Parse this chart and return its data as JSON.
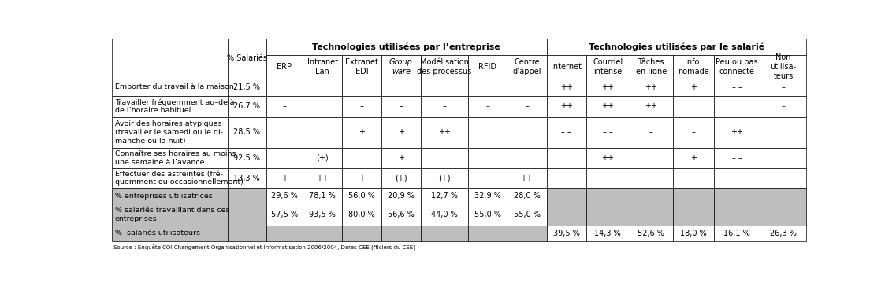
{
  "source": "Source : Enquête COI-Changement Organisationnel et Informatisation 2006/2004, Dares-CEE (fficiers du CEE)",
  "group_header_enterprise": "Technologies utilisées par l’entreprise",
  "group_header_salaried": "Technologies utilisées par le salarié",
  "pct_col_label": "% Salariés",
  "col_headers": [
    "ERP",
    "Intranet\nLan",
    "Extranet\nEDI",
    "Group\nware",
    "Modélisation\ndes processus",
    "RFID",
    "Centre\nd’appel",
    "Internet",
    "Courriel\nintense",
    "Tâches\nen ligne",
    "Info.\nnomade",
    "Peu ou pas\nconnecté",
    "Non\nutilisa-\nteurs"
  ],
  "col_header_italic": [
    false,
    false,
    false,
    true,
    false,
    false,
    false,
    false,
    false,
    false,
    false,
    false,
    false
  ],
  "rows": [
    {
      "label": "Emporter du travail à la maison",
      "pct": "21,5 %",
      "cells": [
        "",
        "",
        "",
        "",
        "",
        "",
        "",
        "++",
        "++",
        "++",
        "+",
        "– –",
        "–"
      ],
      "shaded": false
    },
    {
      "label": "Travailler fréquemment au–delà\nde l’horaire habituel",
      "pct": "26,7 %",
      "cells": [
        "–",
        "",
        "–",
        "–",
        "–",
        "–",
        "–",
        "++",
        "++",
        "++",
        "",
        "",
        "–"
      ],
      "shaded": false
    },
    {
      "label": "Avoir des horaires atypiques\n(travailler le samedi ou le di-\nmanche ou la nuit)",
      "pct": "28,5 %",
      "cells": [
        "",
        "",
        "+",
        "+",
        "++",
        "",
        "",
        "– –",
        "– –",
        "–",
        "–",
        "++",
        ""
      ],
      "shaded": false
    },
    {
      "label": "Connaître ses horaires au moins\nune semaine à l’avance",
      "pct": "92,5 %",
      "cells": [
        "",
        "(+)",
        "",
        "+",
        "",
        "",
        "",
        "",
        "++",
        "",
        "+",
        "– –",
        ""
      ],
      "shaded": false
    },
    {
      "label": "Effectuer des astreintes (fré-\nquemment ou occasionnellement)",
      "pct": "13,3 %",
      "cells": [
        "+",
        "++",
        "+",
        "(+)",
        "(+)",
        "",
        "++",
        "",
        "",
        "",
        "",
        "",
        ""
      ],
      "shaded": false
    },
    {
      "label": "% entreprises utilisatrices",
      "pct": "",
      "cells": [
        "29,6 %",
        "78,1 %",
        "56,0 %",
        "20,9 %",
        "12,7 %",
        "32,9 %",
        "28,0 %",
        "",
        "",
        "",
        "",
        "",
        ""
      ],
      "shaded": true,
      "shade_enterprise": false,
      "shade_salaried": true
    },
    {
      "label": "% salariés travaillant dans ces\nentreprises",
      "pct": "",
      "cells": [
        "57,5 %",
        "93,5 %",
        "80,0 %",
        "56,6 %",
        "44,0 %",
        "55,0 %",
        "55,0 %",
        "",
        "",
        "",
        "",
        "",
        ""
      ],
      "shaded": true,
      "shade_enterprise": false,
      "shade_salaried": true
    },
    {
      "label": "%  salariés utilisateurs",
      "pct": "",
      "cells": [
        "",
        "",
        "",
        "",
        "",
        "",
        "",
        "39,5 %",
        "14,3 %",
        "52,6 %",
        "18,0 %",
        "16,1 %",
        "26,3 %"
      ],
      "shaded": true,
      "shade_enterprise": true,
      "shade_salaried": false
    }
  ],
  "shade_color": "#bebebe",
  "border_color": "#000000",
  "text_color": "#000000",
  "fs_group_header": 8.0,
  "fs_col_header": 7.0,
  "fs_body": 7.0,
  "fs_label": 6.8,
  "fs_source": 5.0
}
